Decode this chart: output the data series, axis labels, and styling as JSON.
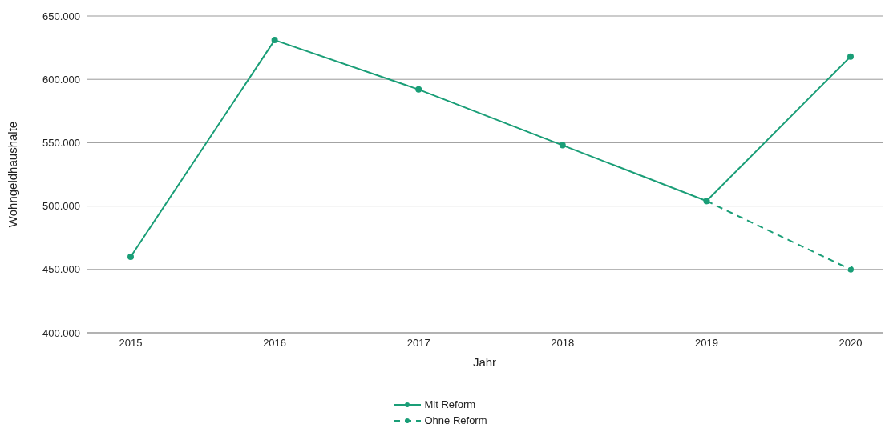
{
  "chart_data": {
    "type": "line",
    "xlabel": "Jahr",
    "ylabel": "Wohngeldhaushalte",
    "categories": [
      "2015",
      "2016",
      "2017",
      "2018",
      "2019",
      "2020"
    ],
    "series": [
      {
        "name": "Mit Reform",
        "color": "#1a9e77",
        "values": [
          460000,
          631000,
          592000,
          548000,
          504000,
          618000
        ],
        "line_style": "solid"
      },
      {
        "name": "Ohne Reform",
        "color": "#1a9e77",
        "values": [
          null,
          null,
          null,
          null,
          504000,
          450000
        ],
        "line_style": "dashed"
      }
    ],
    "ylim": [
      400000,
      650000
    ],
    "yticks": [
      {
        "value": 400000,
        "label": "400.000"
      },
      {
        "value": 450000,
        "label": "450.000"
      },
      {
        "value": 500000,
        "label": "500.000"
      },
      {
        "value": 550000,
        "label": "550.000"
      },
      {
        "value": 600000,
        "label": "600.000"
      },
      {
        "value": 650000,
        "label": "650.000"
      }
    ],
    "grid": "y",
    "legend": "bottom",
    "marker": "circle"
  }
}
